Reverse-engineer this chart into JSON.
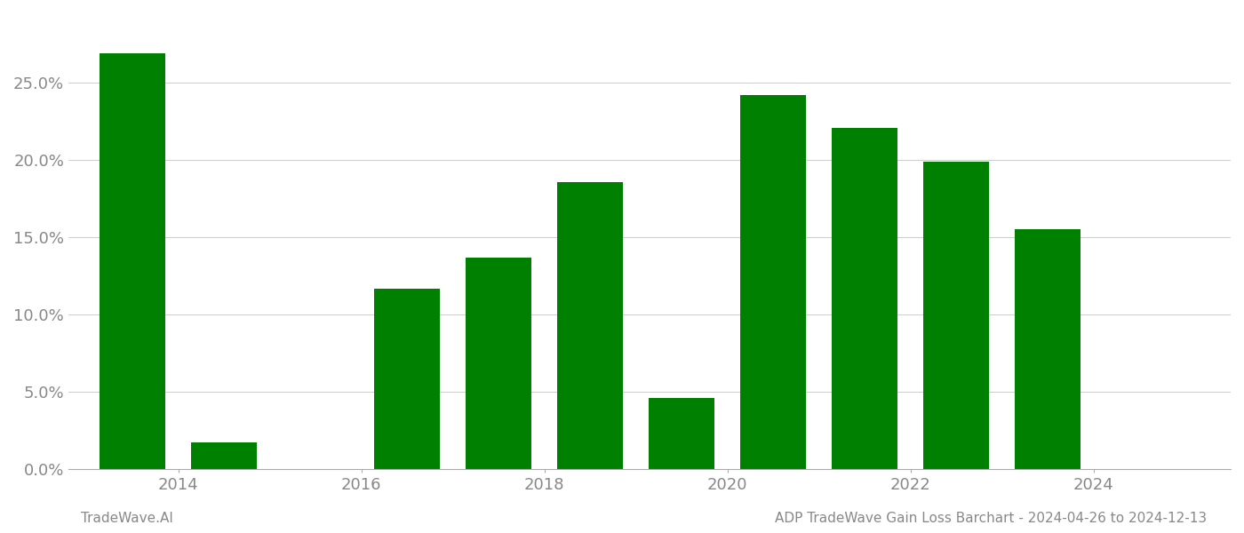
{
  "years": [
    2013,
    2014,
    2016,
    2017,
    2018,
    2019,
    2020,
    2021,
    2022,
    2023
  ],
  "values": [
    0.269,
    0.017,
    0.117,
    0.137,
    0.186,
    0.046,
    0.242,
    0.221,
    0.199,
    0.155
  ],
  "bar_color": "#008000",
  "background_color": "#ffffff",
  "grid_color": "#cccccc",
  "ytick_values": [
    0.0,
    0.05,
    0.1,
    0.15,
    0.2,
    0.25
  ],
  "xtick_labels": [
    "2014",
    "2016",
    "2018",
    "2020",
    "2022",
    "2024"
  ],
  "xtick_positions": [
    2013.5,
    2015.5,
    2017.5,
    2019.5,
    2021.5,
    2023.5
  ],
  "xlim": [
    2012.3,
    2025.0
  ],
  "ylim": [
    0.0,
    0.295
  ],
  "footer_left": "TradeWave.AI",
  "footer_right": "ADP TradeWave Gain Loss Barchart - 2024-04-26 to 2024-12-13",
  "footer_fontsize": 11,
  "tick_fontsize": 13,
  "bar_width": 0.72,
  "figsize": [
    14.0,
    6.0
  ],
  "dpi": 100
}
